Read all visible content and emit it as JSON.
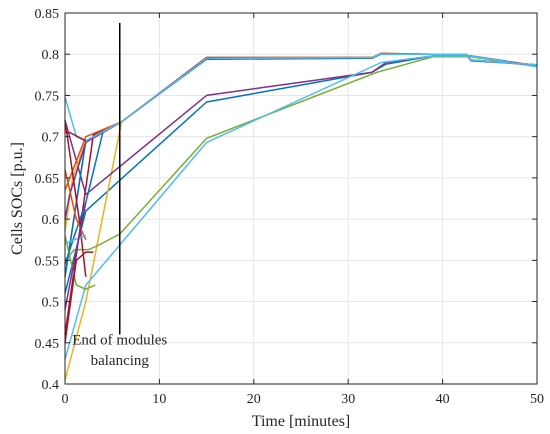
{
  "chart_data": {
    "type": "line",
    "xlabel": "Time [minutes]",
    "ylabel": "Cells SOCs [p.u.]",
    "xlim": [
      0,
      50
    ],
    "ylim": [
      0.4,
      0.85
    ],
    "xticks": [
      "0",
      "10",
      "20",
      "30",
      "40",
      "50"
    ],
    "yticks": [
      "0.4",
      "0.45",
      "0.5",
      "0.55",
      "0.6",
      "0.65",
      "0.7",
      "0.75",
      "0.8",
      "0.85"
    ],
    "grid": true,
    "annotation": {
      "lines": [
        "End of modules",
        "balancing"
      ],
      "vline_x": 5.8
    },
    "series": [
      {
        "color": "#0072BD",
        "x": [
          0,
          2.2,
          15,
          32.5,
          34,
          39,
          43,
          50
        ],
        "y": [
          0.51,
          0.61,
          0.742,
          0.778,
          0.788,
          0.798,
          0.798,
          0.786
        ]
      },
      {
        "color": "#D95319",
        "x": [
          0,
          2.2,
          6,
          15,
          32.5,
          33.5,
          39,
          42.5,
          43,
          50
        ],
        "y": [
          0.53,
          0.695,
          0.718,
          0.795,
          0.796,
          0.801,
          0.8,
          0.8,
          0.793,
          0.787
        ]
      },
      {
        "color": "#EDB120",
        "x": [
          0,
          2.2,
          6,
          15,
          32.5,
          33.5,
          39,
          42.5,
          43,
          50
        ],
        "y": [
          0.405,
          0.5,
          0.718,
          0.796,
          0.796,
          0.8,
          0.8,
          0.8,
          0.793,
          0.787
        ]
      },
      {
        "color": "#7E2F8E",
        "x": [
          0,
          2.2,
          15,
          32.5,
          34,
          39,
          43,
          50
        ],
        "y": [
          0.72,
          0.63,
          0.75,
          0.778,
          0.79,
          0.798,
          0.798,
          0.786
        ]
      },
      {
        "color": "#77AC30",
        "x": [
          0,
          1,
          2.5,
          3.5,
          5.8,
          15,
          33,
          39,
          43,
          50
        ],
        "y": [
          0.55,
          0.563,
          0.563,
          0.568,
          0.582,
          0.698,
          0.778,
          0.797,
          0.797,
          0.785
        ]
      },
      {
        "color": "#4DBEEE",
        "x": [
          0,
          2.2,
          15,
          33.5,
          39,
          43,
          50
        ],
        "y": [
          0.43,
          0.52,
          0.693,
          0.79,
          0.798,
          0.798,
          0.785
        ]
      },
      {
        "color": "#A2142F",
        "x": [
          0,
          3,
          6,
          15,
          32.5,
          33.5,
          39,
          42.5,
          43,
          50
        ],
        "y": [
          0.46,
          0.702,
          0.718,
          0.796,
          0.796,
          0.8,
          0.8,
          0.8,
          0.793,
          0.787
        ]
      },
      {
        "color": "#0072BD",
        "x": [
          0,
          2.2,
          6,
          15,
          32.5,
          33.5,
          39,
          42.5,
          43,
          50
        ],
        "y": [
          0.53,
          0.695,
          0.718,
          0.794,
          0.795,
          0.8,
          0.8,
          0.8,
          0.792,
          0.787
        ]
      },
      {
        "color": "#D95319",
        "x": [
          0,
          2.2,
          6,
          15,
          32.5,
          33.5,
          39,
          42.5,
          43,
          50
        ],
        "y": [
          0.635,
          0.7,
          0.718,
          0.795,
          0.796,
          0.801,
          0.8,
          0.8,
          0.793,
          0.787
        ]
      },
      {
        "color": "#EDB120",
        "x": [
          0,
          0.8,
          2.2,
          6,
          15,
          32.5,
          33.5,
          39,
          42.5,
          43,
          50
        ],
        "y": [
          0.585,
          0.65,
          0.695,
          0.718,
          0.795,
          0.796,
          0.8,
          0.8,
          0.8,
          0.793,
          0.787
        ]
      },
      {
        "color": "#7E2F8E",
        "x": [
          0,
          0.5,
          2.2,
          6,
          15,
          32.5,
          33.5,
          39,
          42.5,
          43,
          50
        ],
        "y": [
          0.6,
          0.63,
          0.693,
          0.718,
          0.795,
          0.796,
          0.8,
          0.8,
          0.8,
          0.793,
          0.787
        ]
      },
      {
        "color": "#77AC30",
        "x": [
          0,
          1.2,
          2.2,
          3.2
        ],
        "y": [
          0.58,
          0.52,
          0.515,
          0.52
        ]
      },
      {
        "color": "#4DBEEE",
        "x": [
          0,
          1.2,
          2.2,
          6,
          15,
          32.5,
          33.5,
          39,
          42.5,
          43,
          50
        ],
        "y": [
          0.748,
          0.7,
          0.695,
          0.718,
          0.795,
          0.796,
          0.8,
          0.8,
          0.8,
          0.793,
          0.787
        ]
      },
      {
        "color": "#A2142F",
        "x": [
          0,
          0.5,
          2.2
        ],
        "y": [
          0.705,
          0.705,
          0.695
        ]
      },
      {
        "color": "#0072BD",
        "x": [
          0,
          1,
          2.2,
          4
        ],
        "y": [
          0.545,
          0.58,
          0.62,
          0.705
        ]
      },
      {
        "color": "#A2142F",
        "x": [
          0,
          1.5,
          2.2
        ],
        "y": [
          0.72,
          0.6,
          0.53
        ]
      },
      {
        "color": "#D95319",
        "x": [
          0,
          1.2,
          2.2
        ],
        "y": [
          0.66,
          0.6,
          0.575
        ]
      },
      {
        "color": "#4DBEEE",
        "x": [
          0,
          1,
          2.2
        ],
        "y": [
          0.57,
          0.575,
          0.58
        ]
      },
      {
        "color": "#7E2F8E",
        "x": [
          0,
          1,
          2.2
        ],
        "y": [
          0.49,
          0.55,
          0.62
        ]
      },
      {
        "color": "#A2142F",
        "x": [
          0,
          1.2,
          2.2,
          3
        ],
        "y": [
          0.45,
          0.55,
          0.56,
          0.56
        ]
      }
    ]
  }
}
